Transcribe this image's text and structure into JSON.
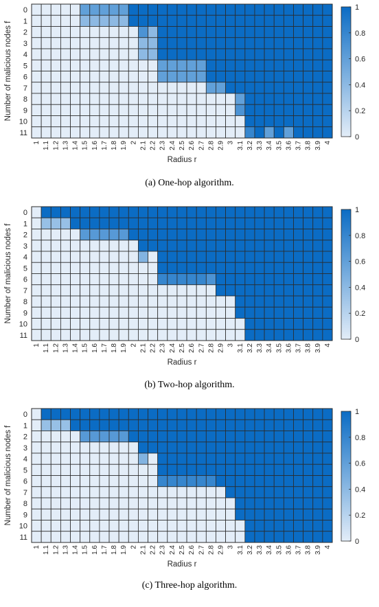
{
  "chart_data": [
    {
      "type": "heatmap",
      "caption": "(a) One-hop algorithm.",
      "xlabel": "Radius r",
      "ylabel": "Number of malicious nodes f",
      "x": [
        "1",
        "1.1",
        "1.2",
        "1.3",
        "1.4",
        "1.5",
        "1.6",
        "1.7",
        "1.8",
        "1.9",
        "2",
        "2.1",
        "2.2",
        "2.3",
        "2.4",
        "2.5",
        "2.6",
        "2.7",
        "2.8",
        "2.9",
        "3",
        "3.1",
        "3.2",
        "3.3",
        "3.4",
        "3.5",
        "3.6",
        "3.7",
        "3.8",
        "3.9",
        "4"
      ],
      "y": [
        "0",
        "1",
        "2",
        "3",
        "4",
        "5",
        "6",
        "7",
        "8",
        "9",
        "10",
        "11"
      ],
      "colorbar": {
        "ticks": [
          "0",
          "0.2",
          "0.4",
          "0.6",
          "0.8",
          "1"
        ],
        "range": [
          0,
          1
        ]
      },
      "values": [
        [
          0,
          0,
          0,
          0,
          0,
          0.6,
          0.6,
          0.6,
          0.6,
          0.6,
          1,
          1,
          1,
          1,
          1,
          1,
          1,
          1,
          1,
          1,
          1,
          1,
          1,
          1,
          1,
          1,
          1,
          1,
          1,
          1,
          1
        ],
        [
          0,
          0,
          0,
          0,
          0,
          0.4,
          0.4,
          0.4,
          0.4,
          0.4,
          1,
          1,
          1,
          1,
          1,
          1,
          1,
          1,
          1,
          1,
          1,
          1,
          1,
          1,
          1,
          1,
          1,
          1,
          1,
          1,
          1
        ],
        [
          0,
          0,
          0,
          0,
          0,
          0,
          0,
          0,
          0,
          0,
          0,
          0.7,
          0.4,
          1,
          1,
          1,
          1,
          1,
          1,
          1,
          1,
          1,
          1,
          1,
          1,
          1,
          1,
          1,
          1,
          1,
          1
        ],
        [
          0,
          0,
          0,
          0,
          0,
          0,
          0,
          0,
          0,
          0,
          0,
          0.4,
          0.4,
          1,
          1,
          1,
          1,
          1,
          1,
          1,
          1,
          1,
          1,
          1,
          1,
          1,
          1,
          1,
          1,
          1,
          1
        ],
        [
          0,
          0,
          0,
          0,
          0,
          0,
          0,
          0,
          0,
          0,
          0,
          0.4,
          0.4,
          1,
          1,
          1,
          1,
          1,
          1,
          1,
          1,
          1,
          1,
          1,
          1,
          1,
          1,
          1,
          1,
          1,
          1
        ],
        [
          0,
          0,
          0,
          0,
          0,
          0,
          0,
          0,
          0,
          0,
          0,
          0,
          0,
          0.6,
          0.6,
          0.6,
          0.6,
          0.6,
          1,
          1,
          1,
          1,
          1,
          1,
          1,
          1,
          1,
          1,
          1,
          1,
          1
        ],
        [
          0,
          0,
          0,
          0,
          0,
          0,
          0,
          0,
          0,
          0,
          0,
          0,
          0,
          0.6,
          0.6,
          0.6,
          0.6,
          0.6,
          1,
          1,
          1,
          1,
          1,
          1,
          1,
          1,
          1,
          1,
          1,
          1,
          1
        ],
        [
          0,
          0,
          0,
          0,
          0,
          0,
          0,
          0,
          0,
          0,
          0,
          0,
          0,
          0,
          0,
          0,
          0,
          0,
          0.6,
          0.6,
          1,
          1,
          1,
          1,
          1,
          1,
          1,
          1,
          1,
          1,
          1
        ],
        [
          0,
          0,
          0,
          0,
          0,
          0,
          0,
          0,
          0,
          0,
          0,
          0,
          0,
          0,
          0,
          0,
          0,
          0,
          0,
          0,
          0,
          0.6,
          1,
          1,
          1,
          1,
          1,
          1,
          1,
          1,
          1
        ],
        [
          0,
          0,
          0,
          0,
          0,
          0,
          0,
          0,
          0,
          0,
          0,
          0,
          0,
          0,
          0,
          0,
          0,
          0,
          0,
          0,
          0,
          0.7,
          1,
          1,
          1,
          1,
          1,
          1,
          1,
          1,
          1
        ],
        [
          0,
          0,
          0,
          0,
          0,
          0,
          0,
          0,
          0,
          0,
          0,
          0,
          0,
          0,
          0,
          0,
          0,
          0,
          0,
          0,
          0,
          0,
          1,
          1,
          1,
          1,
          1,
          1,
          1,
          1,
          1
        ],
        [
          0,
          0,
          0,
          0,
          0,
          0,
          0,
          0,
          0,
          0,
          0,
          0,
          0,
          0,
          0,
          0,
          0,
          0,
          0,
          0,
          0,
          0,
          0.8,
          1,
          0.6,
          1,
          0.6,
          1,
          1,
          1,
          1
        ]
      ]
    },
    {
      "type": "heatmap",
      "caption": "(b) Two-hop algorithm.",
      "xlabel": "Radius r",
      "ylabel": "Number of malicious nodes f",
      "x": [
        "1",
        "1.1",
        "1.2",
        "1.3",
        "1.4",
        "1.5",
        "1.6",
        "1.7",
        "1.8",
        "1.9",
        "2",
        "2.1",
        "2.2",
        "2.3",
        "2.4",
        "2.5",
        "2.6",
        "2.7",
        "2.8",
        "2.9",
        "3",
        "3.1",
        "3.2",
        "3.3",
        "3.4",
        "3.5",
        "3.6",
        "3.7",
        "3.8",
        "3.9",
        "4"
      ],
      "y": [
        "0",
        "1",
        "2",
        "3",
        "4",
        "5",
        "6",
        "7",
        "8",
        "9",
        "10",
        "11"
      ],
      "colorbar": {
        "ticks": [
          "0",
          "0.2",
          "0.4",
          "0.6",
          "0.8",
          "1"
        ],
        "range": [
          0,
          1
        ]
      },
      "values": [
        [
          0,
          1,
          1,
          1,
          1,
          1,
          1,
          1,
          1,
          1,
          1,
          1,
          1,
          1,
          1,
          1,
          1,
          1,
          1,
          1,
          1,
          1,
          1,
          1,
          1,
          1,
          1,
          1,
          1,
          1,
          1
        ],
        [
          0,
          0.35,
          0.35,
          0.35,
          1,
          1,
          1,
          1,
          1,
          1,
          1,
          1,
          1,
          1,
          1,
          1,
          1,
          1,
          1,
          1,
          1,
          1,
          1,
          1,
          1,
          1,
          1,
          1,
          1,
          1,
          1
        ],
        [
          0,
          0,
          0,
          0,
          0,
          0.65,
          0.65,
          0.65,
          0.65,
          0.65,
          1,
          1,
          1,
          1,
          1,
          1,
          1,
          1,
          1,
          1,
          1,
          1,
          1,
          1,
          1,
          1,
          1,
          1,
          1,
          1,
          1
        ],
        [
          0,
          0,
          0,
          0,
          0,
          0,
          0,
          0,
          0,
          0,
          0,
          1,
          1,
          1,
          1,
          1,
          1,
          1,
          1,
          1,
          1,
          1,
          1,
          1,
          1,
          1,
          1,
          1,
          1,
          1,
          1
        ],
        [
          0,
          0,
          0,
          0,
          0,
          0,
          0,
          0,
          0,
          0,
          0,
          0.45,
          0,
          1,
          1,
          1,
          1,
          1,
          1,
          1,
          1,
          1,
          1,
          1,
          1,
          1,
          1,
          1,
          1,
          1,
          1
        ],
        [
          0,
          0,
          0,
          0,
          0,
          0,
          0,
          0,
          0,
          0,
          0,
          0,
          0,
          1,
          1,
          1,
          1,
          1,
          1,
          1,
          1,
          1,
          1,
          1,
          1,
          1,
          1,
          1,
          1,
          1,
          1
        ],
        [
          0,
          0,
          0,
          0,
          0,
          0,
          0,
          0,
          0,
          0,
          0,
          0,
          0,
          0.8,
          0.8,
          0.8,
          0.8,
          0.8,
          0.7,
          1,
          1,
          1,
          1,
          1,
          1,
          1,
          1,
          1,
          1,
          1,
          1
        ],
        [
          0,
          0,
          0,
          0,
          0,
          0,
          0,
          0,
          0,
          0,
          0,
          0,
          0,
          0,
          0,
          0,
          0,
          0,
          0,
          1,
          1,
          1,
          1,
          1,
          1,
          1,
          1,
          1,
          1,
          1,
          1
        ],
        [
          0,
          0,
          0,
          0,
          0,
          0,
          0,
          0,
          0,
          0,
          0,
          0,
          0,
          0,
          0,
          0,
          0,
          0,
          0,
          0,
          0,
          1,
          1,
          1,
          1,
          1,
          1,
          1,
          1,
          1,
          1
        ],
        [
          0,
          0,
          0,
          0,
          0,
          0,
          0,
          0,
          0,
          0,
          0,
          0,
          0,
          0,
          0,
          0,
          0,
          0,
          0,
          0,
          0,
          1,
          1,
          1,
          1,
          1,
          1,
          1,
          1,
          1,
          1
        ],
        [
          0,
          0,
          0,
          0,
          0,
          0,
          0,
          0,
          0,
          0,
          0,
          0,
          0,
          0,
          0,
          0,
          0,
          0,
          0,
          0,
          0,
          0,
          1,
          1,
          1,
          1,
          1,
          1,
          1,
          1,
          1
        ],
        [
          0,
          0,
          0,
          0,
          0,
          0,
          0,
          0,
          0,
          0,
          0,
          0,
          0,
          0,
          0,
          0,
          0,
          0,
          0,
          0,
          0,
          0,
          1,
          1,
          1,
          1,
          1,
          1,
          1,
          1,
          1
        ]
      ]
    },
    {
      "type": "heatmap",
      "caption": "(c) Three-hop algorithm.",
      "xlabel": "Radius r",
      "ylabel": "Number of malicious nodes f",
      "x": [
        "1",
        "1.1",
        "1.2",
        "1.3",
        "1.4",
        "1.5",
        "1.6",
        "1.7",
        "1.8",
        "1.9",
        "2",
        "2.1",
        "2.2",
        "2.3",
        "2.4",
        "2.5",
        "2.6",
        "2.7",
        "2.8",
        "2.9",
        "3",
        "3.1",
        "3.2",
        "3.3",
        "3.4",
        "3.5",
        "3.6",
        "3.7",
        "3.8",
        "3.9",
        "4"
      ],
      "y": [
        "0",
        "1",
        "2",
        "3",
        "4",
        "5",
        "6",
        "7",
        "8",
        "9",
        "10",
        "11"
      ],
      "colorbar": {
        "ticks": [
          "0",
          "0.2",
          "0.4",
          "0.6",
          "0.8",
          "1"
        ],
        "range": [
          0,
          1
        ]
      },
      "values": [
        [
          0,
          1,
          1,
          1,
          1,
          1,
          1,
          1,
          1,
          1,
          1,
          1,
          1,
          1,
          1,
          1,
          1,
          1,
          1,
          1,
          1,
          1,
          1,
          1,
          1,
          1,
          1,
          1,
          1,
          1,
          1
        ],
        [
          0,
          0.35,
          0.35,
          0.35,
          1,
          1,
          1,
          1,
          1,
          1,
          1,
          1,
          1,
          1,
          1,
          1,
          1,
          1,
          1,
          1,
          1,
          1,
          1,
          1,
          1,
          1,
          1,
          1,
          1,
          1,
          1
        ],
        [
          0,
          0,
          0,
          0,
          0,
          0.65,
          0.65,
          0.65,
          0.65,
          0.65,
          1,
          1,
          1,
          1,
          1,
          1,
          1,
          1,
          1,
          1,
          1,
          1,
          1,
          1,
          1,
          1,
          1,
          1,
          1,
          1,
          1
        ],
        [
          0,
          0,
          0,
          0,
          0,
          0,
          0,
          0,
          0,
          0,
          0,
          1,
          1,
          1,
          1,
          1,
          1,
          1,
          1,
          1,
          1,
          1,
          1,
          1,
          1,
          1,
          1,
          1,
          1,
          1,
          1
        ],
        [
          0,
          0,
          0,
          0,
          0,
          0,
          0,
          0,
          0,
          0,
          0,
          0.45,
          0,
          1,
          1,
          1,
          1,
          1,
          1,
          1,
          1,
          1,
          1,
          1,
          1,
          1,
          1,
          1,
          1,
          1,
          1
        ],
        [
          0,
          0,
          0,
          0,
          0,
          0,
          0,
          0,
          0,
          0,
          0,
          0,
          0,
          1,
          1,
          1,
          1,
          1,
          1,
          1,
          1,
          1,
          1,
          1,
          1,
          1,
          1,
          1,
          1,
          1,
          1
        ],
        [
          0,
          0,
          0,
          0,
          0,
          0,
          0,
          0,
          0,
          0,
          0,
          0,
          0,
          0.8,
          0.8,
          0.8,
          0.8,
          0.8,
          0.8,
          1,
          1,
          1,
          1,
          1,
          1,
          1,
          1,
          1,
          1,
          1,
          1
        ],
        [
          0,
          0,
          0,
          0,
          0,
          0,
          0,
          0,
          0,
          0,
          0,
          0,
          0,
          0,
          0,
          0,
          0,
          0,
          0,
          0,
          1,
          1,
          1,
          1,
          1,
          1,
          1,
          1,
          1,
          1,
          1
        ],
        [
          0,
          0,
          0,
          0,
          0,
          0,
          0,
          0,
          0,
          0,
          0,
          0,
          0,
          0,
          0,
          0,
          0,
          0,
          0,
          0,
          0,
          1,
          1,
          1,
          1,
          1,
          1,
          1,
          1,
          1,
          1
        ],
        [
          0,
          0,
          0,
          0,
          0,
          0,
          0,
          0,
          0,
          0,
          0,
          0,
          0,
          0,
          0,
          0,
          0,
          0,
          0,
          0,
          0,
          1,
          1,
          1,
          1,
          1,
          1,
          1,
          1,
          1,
          1
        ],
        [
          0,
          0,
          0,
          0,
          0,
          0,
          0,
          0,
          0,
          0,
          0,
          0,
          0,
          0,
          0,
          0,
          0,
          0,
          0,
          0,
          0,
          0,
          1,
          1,
          1,
          1,
          1,
          1,
          1,
          1,
          1
        ],
        [
          0,
          0,
          0,
          0,
          0,
          0,
          0,
          0,
          0,
          0,
          0,
          0,
          0,
          0,
          0,
          0,
          0,
          0,
          0,
          0,
          0,
          0,
          1,
          1,
          1,
          1,
          1,
          1,
          1,
          1,
          1
        ]
      ]
    }
  ],
  "colors": {
    "low": "#e3edf8",
    "high": "#0b6cc4",
    "grid": "#2b2b2b"
  }
}
